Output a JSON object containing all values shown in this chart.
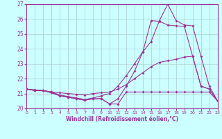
{
  "xlabel": "Windchill (Refroidissement éolien,°C)",
  "xlim": [
    0,
    23
  ],
  "ylim": [
    20,
    27
  ],
  "yticks": [
    20,
    21,
    22,
    23,
    24,
    25,
    26,
    27
  ],
  "xticks": [
    0,
    1,
    2,
    3,
    4,
    5,
    6,
    7,
    8,
    9,
    10,
    11,
    12,
    13,
    14,
    15,
    16,
    17,
    18,
    19,
    20,
    21,
    22,
    23
  ],
  "line_color": "#993399",
  "bg_color": "#ccffff",
  "grid_color": "#aacccc",
  "lines": [
    {
      "x": [
        0,
        1,
        2,
        3,
        4,
        5,
        6,
        7,
        8,
        9,
        10,
        11,
        12,
        13,
        14,
        15,
        16,
        17,
        18,
        19,
        20,
        21,
        22,
        23
      ],
      "y": [
        21.3,
        21.2,
        21.2,
        21.05,
        20.85,
        20.75,
        20.65,
        20.55,
        20.65,
        20.65,
        20.3,
        20.3,
        21.1,
        21.1,
        21.1,
        21.1,
        21.1,
        21.1,
        21.1,
        21.1,
        21.1,
        21.1,
        21.1,
        20.5
      ]
    },
    {
      "x": [
        0,
        1,
        2,
        3,
        4,
        5,
        6,
        7,
        8,
        9,
        10,
        11,
        12,
        13,
        14,
        15,
        16,
        17,
        18,
        19,
        20,
        21,
        22,
        23
      ],
      "y": [
        21.3,
        21.2,
        21.2,
        21.1,
        21.05,
        21.0,
        20.95,
        20.9,
        21.0,
        21.05,
        21.1,
        21.3,
        21.6,
        22.0,
        22.4,
        22.8,
        23.1,
        23.2,
        23.3,
        23.45,
        23.5,
        21.5,
        21.3,
        20.5
      ]
    },
    {
      "x": [
        0,
        1,
        2,
        3,
        4,
        5,
        6,
        7,
        8,
        9,
        10,
        11,
        12,
        13,
        14,
        15,
        16,
        17,
        18,
        19,
        20,
        21,
        22,
        23
      ],
      "y": [
        21.3,
        21.2,
        21.2,
        21.05,
        20.85,
        20.75,
        20.65,
        20.55,
        20.65,
        20.65,
        20.3,
        20.65,
        21.5,
        22.5,
        23.8,
        25.9,
        25.85,
        25.6,
        25.55,
        25.5,
        23.5,
        21.5,
        21.3,
        20.5
      ]
    },
    {
      "x": [
        0,
        1,
        2,
        3,
        4,
        5,
        6,
        7,
        8,
        9,
        10,
        11,
        12,
        13,
        14,
        15,
        16,
        17,
        18,
        19,
        20,
        21,
        22,
        23
      ],
      "y": [
        21.3,
        21.25,
        21.2,
        21.1,
        20.9,
        20.8,
        20.7,
        20.6,
        20.7,
        20.85,
        21.0,
        21.5,
        22.2,
        23.0,
        23.8,
        24.5,
        25.9,
        27.0,
        25.9,
        25.6,
        25.55,
        23.5,
        21.5,
        20.5
      ]
    }
  ]
}
